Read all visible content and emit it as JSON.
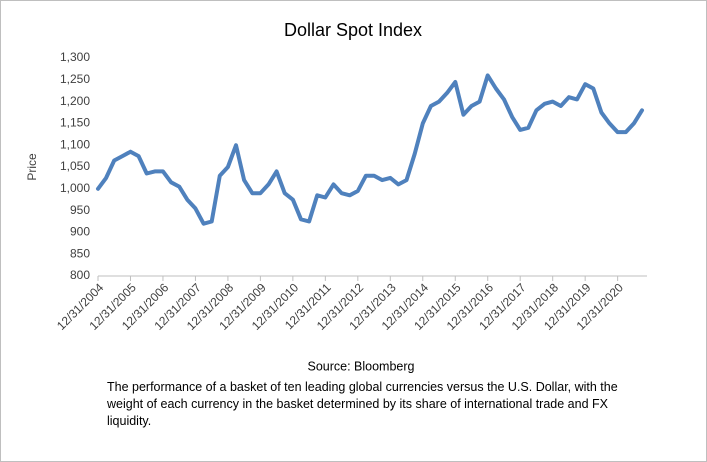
{
  "chart_data": {
    "type": "line",
    "title": "Dollar Spot Index",
    "ylabel": "Price",
    "source": "Source: Bloomberg",
    "caption": "The performance of a basket of ten leading global currencies versus the U.S. Dollar, with the weight of each currency in the basket determined by its share of international trade and FX liquidity.",
    "categories": [
      "12/31/2004",
      null,
      null,
      null,
      "12/31/2005",
      null,
      null,
      null,
      "12/31/2006",
      null,
      null,
      null,
      "12/31/2007",
      null,
      null,
      null,
      "12/31/2008",
      null,
      null,
      null,
      "12/31/2009",
      null,
      null,
      null,
      "12/31/2010",
      null,
      null,
      null,
      "12/31/2011",
      null,
      null,
      null,
      "12/31/2012",
      null,
      null,
      null,
      "12/31/2013",
      null,
      null,
      null,
      "12/31/2014",
      null,
      null,
      null,
      "12/31/2015",
      null,
      null,
      null,
      "12/31/2016",
      null,
      null,
      null,
      "12/31/2017",
      null,
      null,
      null,
      "12/31/2018",
      null,
      null,
      null,
      "12/31/2019",
      null,
      null,
      null,
      "12/31/2020",
      null,
      null,
      null
    ],
    "series": [
      {
        "name": "Dollar Spot Index",
        "color": "#4f81bd",
        "values": [
          1000,
          1025,
          1065,
          1075,
          1085,
          1075,
          1035,
          1040,
          1040,
          1015,
          1005,
          975,
          955,
          920,
          925,
          1030,
          1050,
          1100,
          1020,
          990,
          990,
          1010,
          1040,
          990,
          975,
          930,
          925,
          985,
          980,
          1010,
          990,
          985,
          995,
          1030,
          1030,
          1020,
          1025,
          1010,
          1020,
          1080,
          1150,
          1190,
          1200,
          1220,
          1245,
          1170,
          1190,
          1200,
          1260,
          1230,
          1205,
          1165,
          1135,
          1140,
          1180,
          1195,
          1200,
          1190,
          1210,
          1205,
          1240,
          1230,
          1175,
          1150,
          1130,
          1130,
          1150,
          1180
        ]
      }
    ],
    "ylim": [
      800,
      1300
    ],
    "yticks": [
      {
        "value": 800,
        "label": "800"
      },
      {
        "value": 850,
        "label": "850"
      },
      {
        "value": 900,
        "label": "900"
      },
      {
        "value": 950,
        "label": "950"
      },
      {
        "value": 1000,
        "label": "1,000"
      },
      {
        "value": 1050,
        "label": "1,050"
      },
      {
        "value": 1100,
        "label": "1,100"
      },
      {
        "value": 1150,
        "label": "1,150"
      },
      {
        "value": 1200,
        "label": "1,200"
      },
      {
        "value": 1250,
        "label": "1,250"
      },
      {
        "value": 1300,
        "label": "1,300"
      }
    ],
    "grid": false
  }
}
